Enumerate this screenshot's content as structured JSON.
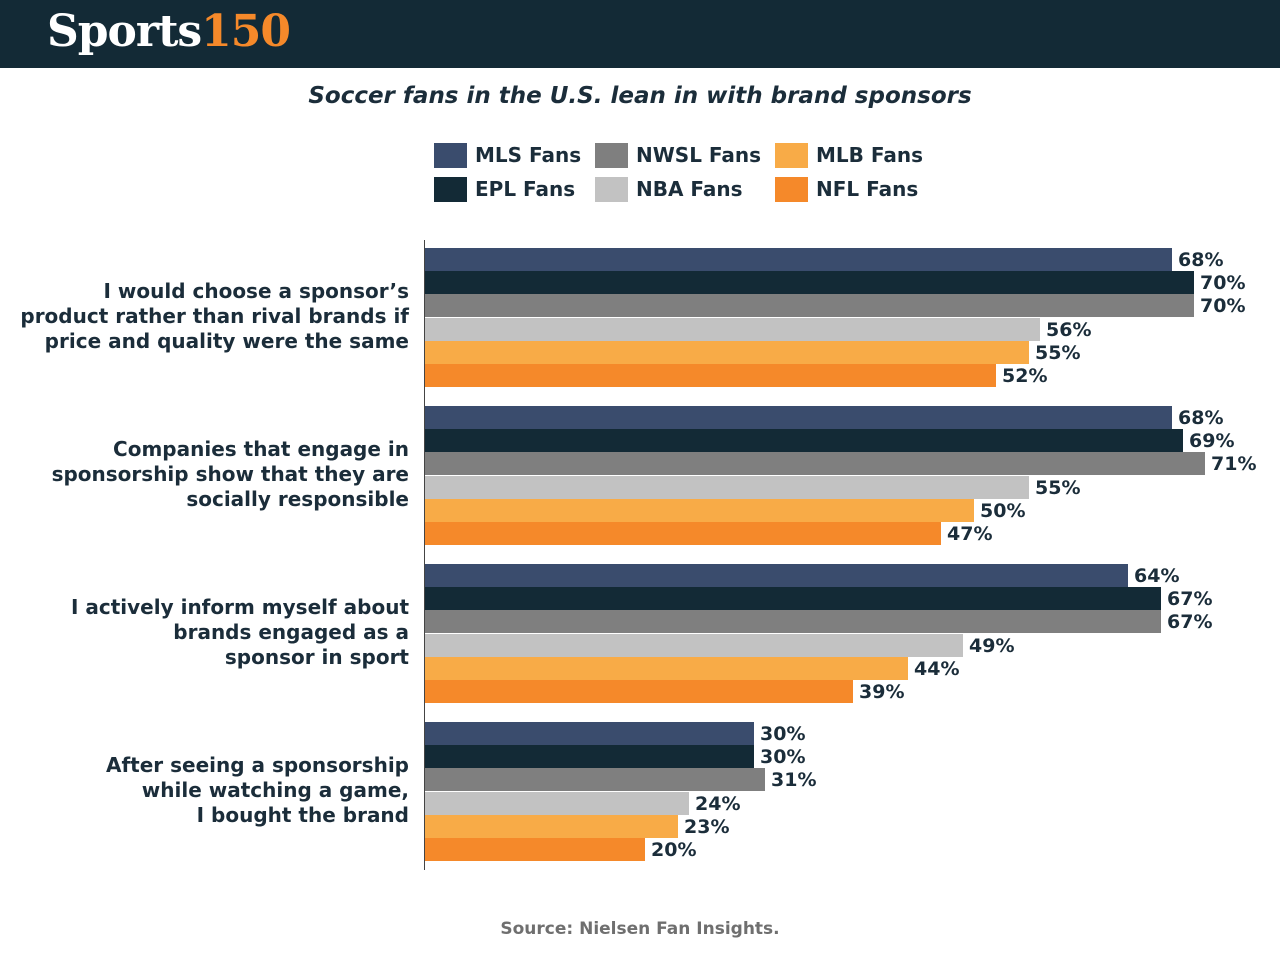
{
  "header": {
    "logo_word": "Sports",
    "logo_number": "150"
  },
  "chart_data": {
    "type": "bar",
    "orientation": "horizontal",
    "title": "Soccer fans in the U.S. lean in with brand sponsors",
    "source": "Source:  Nielsen Fan Insights.",
    "unit": "%",
    "xlim": [
      0,
      100
    ],
    "categories": [
      [
        "I would choose a sponsor’s",
        "product rather than rival brands if",
        "price and quality were the same"
      ],
      [
        "Companies that engage in",
        "sponsorship show that they are",
        "socially responsible"
      ],
      [
        "I actively inform myself about",
        "brands engaged as a",
        "sponsor in sport"
      ],
      [
        "After seeing a sponsorship",
        "while watching a game,",
        "I bought the brand"
      ]
    ],
    "series": [
      {
        "name": "MLS Fans",
        "color": "#3a4c6d",
        "values": [
          68,
          68,
          64,
          30
        ]
      },
      {
        "name": "EPL Fans",
        "color": "#132a36",
        "values": [
          70,
          69,
          67,
          30
        ]
      },
      {
        "name": "NWSL Fans",
        "color": "#7f7f7f",
        "values": [
          70,
          71,
          67,
          31
        ]
      },
      {
        "name": "NBA Fans",
        "color": "#c2c2c2",
        "values": [
          56,
          55,
          49,
          24
        ]
      },
      {
        "name": "MLB Fans",
        "color": "#f8ab47",
        "values": [
          55,
          50,
          44,
          23
        ]
      },
      {
        "name": "NFL Fans",
        "color": "#f5892a",
        "values": [
          52,
          47,
          39,
          20
        ]
      }
    ],
    "legend_order": [
      "MLS Fans",
      "NWSL Fans",
      "MLB Fans",
      "EPL Fans",
      "NBA Fans",
      "NFL Fans"
    ]
  }
}
